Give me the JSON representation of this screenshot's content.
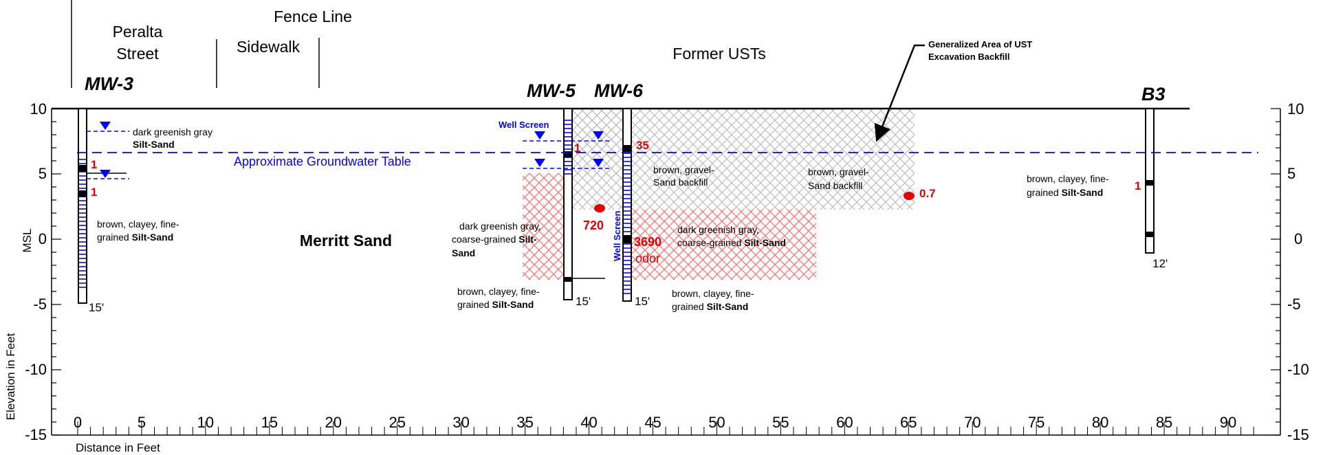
{
  "top_labels": {
    "peralta_line1": "Peralta",
    "peralta_line2": "Street",
    "sidewalk": "Sidewalk",
    "fence_line": "Fence Line",
    "former_usts": "Former USTs",
    "backfill_callout_line1": "Generalized Area of UST",
    "backfill_callout_line2": "Excavation Backfill"
  },
  "wells": {
    "mw3": "MW-3",
    "mw5": "MW-5",
    "mw6": "MW-6",
    "b3": "B3"
  },
  "axes": {
    "y_title": "Elevation in Feet",
    "y_msl": "MSL",
    "x_title": "Distance in Feet",
    "y_ticks": [
      "10",
      "5",
      "0",
      "-5",
      "-10",
      "-15"
    ],
    "x_ticks": [
      "0",
      "5",
      "10",
      "15",
      "20",
      "25",
      "30",
      "35",
      "40",
      "45",
      "50",
      "55",
      "60",
      "65",
      "70",
      "75",
      "80",
      "85",
      "90"
    ]
  },
  "groundwater": {
    "label": "Approximate Groundwater Table",
    "elevation_ft": 6.7
  },
  "formation": {
    "label": "Merritt Sand"
  },
  "lithology": {
    "mw3_top_line1": "dark greenish gray",
    "mw3_top_line2": "Silt-Sand",
    "mw3_bottom_line1": "brown, clayey, fine-",
    "mw3_bottom_line2a": "grained ",
    "mw3_bottom_line2b": "Silt-Sand",
    "mw5_left_line1": "dark greenish gray,",
    "mw5_left_line2a": "coarse-grained ",
    "mw5_left_line2b": "Silt-",
    "mw5_left_line3": "Sand",
    "mw5_bottom_line1": "brown, clayey, fine-",
    "mw5_bottom_line2a": "grained  ",
    "mw5_bottom_line2b": "Silt-Sand",
    "backfill1_line1": "brown, gravel-",
    "backfill1_line2": "Sand backfill",
    "backfill2_line1": "brown, gravel-",
    "backfill2_line2": "Sand backfill",
    "mw6_right_line1": "dark greenish gray,",
    "mw6_right_line2a": "coarse-grained ",
    "mw6_right_line2b": "Silt-Sand",
    "mw6_bottom_line1": "brown, clayey, fine-",
    "mw6_bottom_line2a": "grained   ",
    "mw6_bottom_line2b": "Silt-Sand",
    "b3_line1": "brown, clayey, fine-",
    "b3_line2a": "grained ",
    "b3_line2b": "Silt-Sand"
  },
  "screens": {
    "mw5_label": "Well Screen",
    "mw6_label": "Well Screen"
  },
  "samples": {
    "mw3_a": "1",
    "mw3_b": "1",
    "mw5_a": "1",
    "mw6_a": "35",
    "mw6_b": "3690",
    "mw6_odor": "odor",
    "red_dot_a": "720",
    "red_dot_b": "0.7",
    "b3_a": "1"
  },
  "depths": {
    "mw3": "15'",
    "mw5": "15'",
    "mw6": "15'",
    "b3": "12'"
  },
  "colors": {
    "blue": "#0000ff",
    "red": "#e60000",
    "hatch_gray": "#b4b4b4",
    "hatch_red": "#ff6b6b"
  }
}
